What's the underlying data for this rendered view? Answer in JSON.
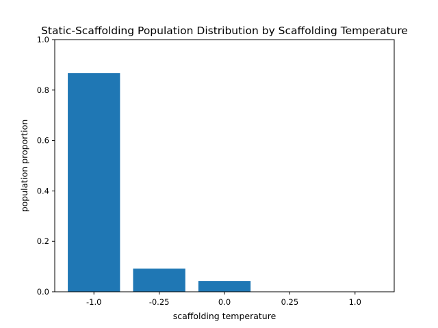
{
  "chart_data": {
    "type": "bar",
    "title": "Static-Scaffolding Population Distribution by Scaffolding Temperature",
    "xlabel": "scaffolding temperature",
    "ylabel": "population proportion",
    "categories": [
      "-1.0",
      "-0.25",
      "0.0",
      "0.25",
      "1.0"
    ],
    "values": [
      0.867,
      0.092,
      0.043,
      0.0,
      0.0
    ],
    "ylim": [
      0,
      1.0
    ],
    "yticks": [
      "0.0",
      "0.2",
      "0.4",
      "0.6",
      "0.8",
      "1.0"
    ],
    "grid": false,
    "bar_color": "#1f77b4"
  }
}
